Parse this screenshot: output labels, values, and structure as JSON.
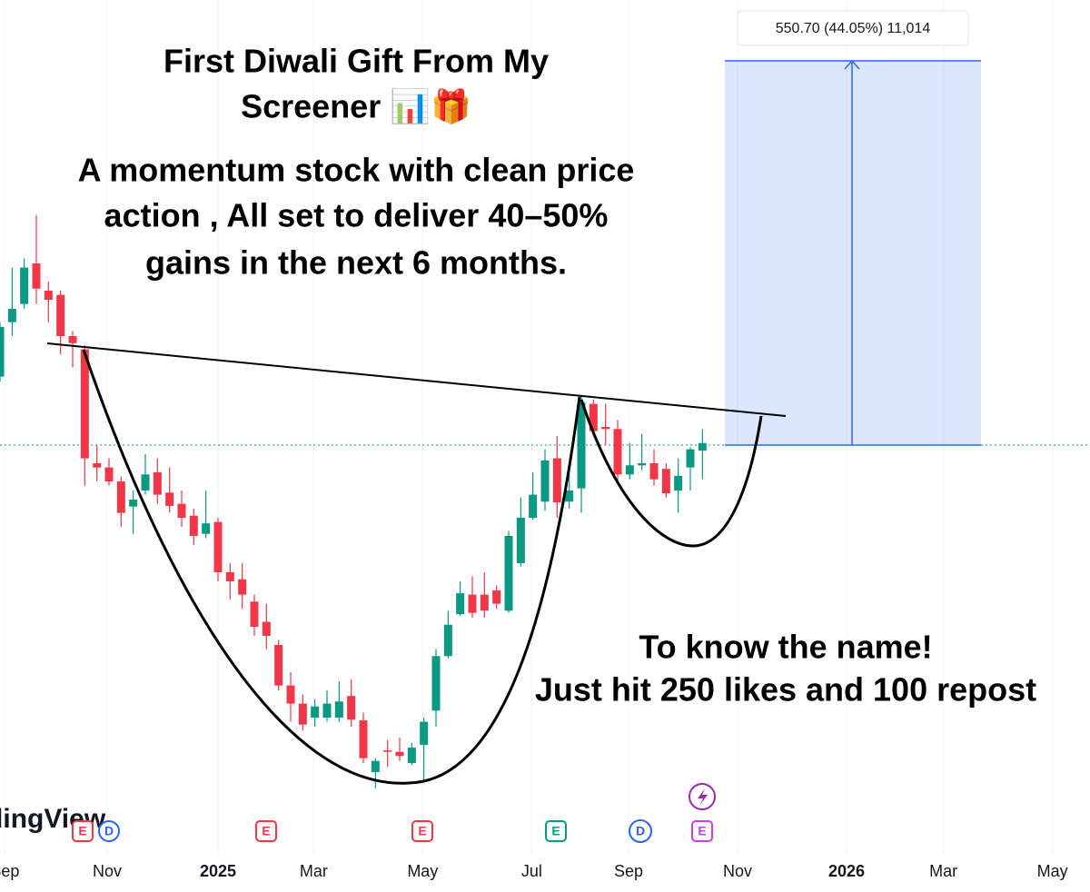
{
  "chart_data": {
    "type": "candlestick",
    "up_color": "#089981",
    "down_color": "#f23645",
    "xlim": [
      0,
      90
    ],
    "ylim": [
      665,
      1887
    ],
    "grid": true,
    "xticks": [
      {
        "value": 0.4,
        "label": "Sep"
      },
      {
        "value": 8.85,
        "label": "Nov"
      },
      {
        "value": 18.0,
        "label": "2025"
      },
      {
        "value": 25.9,
        "label": "Mar"
      },
      {
        "value": 34.9,
        "label": "May"
      },
      {
        "value": 43.9,
        "label": "Jul"
      },
      {
        "value": 51.9,
        "label": "Sep"
      },
      {
        "value": 60.9,
        "label": "Nov"
      },
      {
        "value": 69.9,
        "label": "2026"
      },
      {
        "value": 77.9,
        "label": "Mar"
      },
      {
        "value": 86.9,
        "label": "May"
      }
    ],
    "open": [
      1348,
      1426,
      1452,
      1510,
      1471,
      1465,
      1406,
      1387,
      1224,
      1218,
      1198,
      1162,
      1185,
      1211,
      1182,
      1166,
      1149,
      1123,
      1140,
      1068,
      1058,
      1026,
      997,
      964,
      906,
      880,
      860,
      860,
      860,
      891,
      856,
      782,
      813,
      811,
      795,
      821,
      870,
      948,
      1008,
      1036,
      1036,
      1042,
      1013,
      1081,
      1146,
      1169,
      1231,
      1169,
      1188,
      1309,
      1276,
      1273,
      1208,
      1221,
      1224,
      1216,
      1185,
      1218,
      1242
    ],
    "high": [
      1426,
      1504,
      1517,
      1579,
      1484,
      1471,
      1413,
      1393,
      1250,
      1231,
      1205,
      1185,
      1237,
      1231,
      1218,
      1185,
      1159,
      1185,
      1146,
      1081,
      1081,
      1036,
      1023,
      971,
      925,
      893,
      886,
      899,
      912,
      915,
      867,
      802,
      828,
      831,
      824,
      860,
      958,
      1013,
      1055,
      1062,
      1068,
      1049,
      1127,
      1175,
      1211,
      1244,
      1263,
      1224,
      1322,
      1315,
      1309,
      1286,
      1253,
      1266,
      1244,
      1224,
      1231,
      1247,
      1273
    ],
    "low": [
      1341,
      1406,
      1445,
      1452,
      1426,
      1380,
      1361,
      1192,
      1198,
      1192,
      1133,
      1123,
      1179,
      1166,
      1153,
      1133,
      1107,
      1117,
      1055,
      1029,
      1016,
      977,
      958,
      899,
      854,
      841,
      847,
      854,
      854,
      847,
      795,
      759,
      789,
      798,
      792,
      769,
      847,
      945,
      1006,
      1003,
      1003,
      1016,
      1010,
      1076,
      1143,
      1156,
      1146,
      1159,
      1153,
      1263,
      1250,
      1198,
      1201,
      1214,
      1192,
      1175,
      1153,
      1185,
      1201
    ],
    "close": [
      1419,
      1445,
      1504,
      1474,
      1458,
      1406,
      1396,
      1231,
      1218,
      1198,
      1153,
      1172,
      1208,
      1179,
      1163,
      1146,
      1120,
      1138,
      1068,
      1055,
      1036,
      990,
      977,
      906,
      880,
      850,
      876,
      880,
      883,
      857,
      802,
      798,
      811,
      805,
      817,
      854,
      948,
      993,
      1038,
      1010,
      1013,
      1023,
      1120,
      1146,
      1179,
      1228,
      1168,
      1185,
      1311,
      1270,
      1273,
      1208,
      1221,
      1224,
      1201,
      1181,
      1206,
      1244,
      1253
    ],
    "measure_label": "550.70 (44.05%) 11,014",
    "title_lines": [
      "First Diwali Gift From My",
      "Screener 📊🎁"
    ],
    "note_lines": [
      "A momentum stock with clean price",
      "action , All set to deliver 40–50%",
      "gains in the next 6 months."
    ],
    "cta_lines": [
      "To know the name!",
      "Just hit 250 likes and 100 repost"
    ],
    "events": [
      "E",
      "D",
      "E",
      "E",
      "E",
      "D",
      "E"
    ],
    "watermark": "TradingView"
  }
}
